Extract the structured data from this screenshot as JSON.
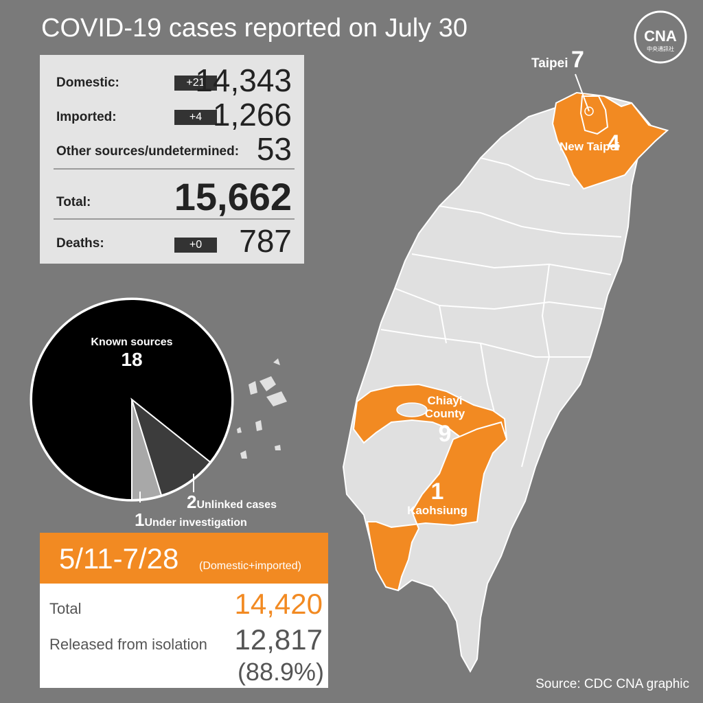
{
  "header": {
    "title": "COVID-19 cases reported on July 30"
  },
  "logo": {
    "text": "CNA",
    "subtext": "中央通訊社"
  },
  "stats": {
    "domestic": {
      "label": "Domestic:",
      "delta": "+21",
      "value": "14,343"
    },
    "imported": {
      "label": "Imported:",
      "delta": "+4",
      "value": "1,266"
    },
    "other": {
      "label": "Other sources/undetermined:",
      "value": "53"
    },
    "total": {
      "label": "Total:",
      "value": "15,662"
    },
    "deaths": {
      "label": "Deaths:",
      "delta": "+0",
      "value": "787"
    }
  },
  "pie": {
    "known": {
      "label": "Known sources",
      "value": 18
    },
    "unlinked": {
      "label": "Unlinked cases",
      "value": 2
    },
    "investigation": {
      "label": "Under investigation",
      "value": 1
    },
    "colors": {
      "known": "#000000",
      "unlinked": "#3c3c3c",
      "investigation": "#a8a8a8"
    }
  },
  "cumulative": {
    "range": "5/11-7/28",
    "note": "(Domestic+imported)",
    "total_label": "Total",
    "total_value": "14,420",
    "released_label": "Released from isolation",
    "released_value": "12,817",
    "released_pct": "(88.9%)"
  },
  "map": {
    "regions": [
      {
        "name": "Taipei",
        "count": "7"
      },
      {
        "name": "New Taipei",
        "count": "4"
      },
      {
        "name": "Chiayi County",
        "count": "9"
      },
      {
        "name": "Kaohsiung",
        "count": "1"
      }
    ],
    "colors": {
      "land": "#e0e0e0",
      "highlight": "#f28a22",
      "border": "#ffffff"
    }
  },
  "footer": {
    "source": "Source: CDC  CNA graphic"
  }
}
